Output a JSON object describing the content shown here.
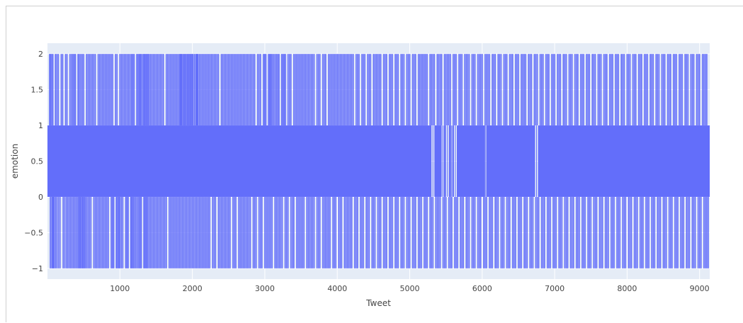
{
  "chart_data": {
    "type": "line",
    "title": "",
    "xlabel": "Tweet",
    "ylabel": "emotion",
    "xlim": [
      0,
      9140
    ],
    "ylim": [
      -1.15,
      2.15
    ],
    "x_ticks": [
      1000,
      2000,
      3000,
      4000,
      5000,
      6000,
      7000,
      8000,
      9000
    ],
    "x_tick_labels": [
      "1000",
      "2000",
      "3000",
      "4000",
      "5000",
      "6000",
      "7000",
      "8000",
      "9000"
    ],
    "y_ticks": [
      -1,
      -0.5,
      0,
      0.5,
      1,
      1.5,
      2
    ],
    "y_tick_labels": [
      "−1",
      "−0.5",
      "0",
      "0.5",
      "1",
      "1.5",
      "2"
    ],
    "grid": true,
    "colors": {
      "line": "#636efa",
      "plot_background": "#e5ecf6",
      "grid": "#ffffff"
    },
    "series": [
      {
        "x_range": [
          0,
          9140
        ],
        "value_set": [
          -1,
          0,
          1,
          2
        ],
        "primary_oscillation": [
          0,
          1
        ],
        "spikes_to_2_at": [
          30,
          40,
          110,
          330,
          350,
          440,
          460,
          560,
          580,
          600,
          620,
          700,
          720,
          780,
          820,
          840,
          860,
          1020,
          1040,
          1060,
          1120,
          1160,
          1250,
          1300,
          1320,
          1350,
          1400,
          1440,
          1500,
          1560,
          1640,
          1660,
          1720,
          1760,
          1820,
          1850,
          1900,
          1950,
          1980,
          2010,
          2050,
          2080,
          2100,
          2140,
          2180,
          2200,
          2260,
          2300,
          2320,
          2400,
          2440,
          2480,
          2520,
          2560,
          2620,
          2680,
          2740,
          2780,
          2820,
          2900,
          2980,
          3050,
          3100,
          3160,
          3250,
          3320,
          3400,
          3460,
          3520,
          3580,
          3640,
          3720,
          3800,
          3880,
          3940,
          4000,
          4060,
          4120,
          4180,
          4260,
          4340,
          4420,
          4500,
          4560,
          4640,
          4720,
          4800,
          4880,
          4960,
          5040,
          5140,
          5200,
          5300,
          5400,
          5520,
          5600,
          5680,
          5780,
          5860,
          5960,
          6060,
          6140,
          6220,
          6300,
          6380,
          6460,
          6560,
          6640,
          6720,
          6800,
          6880,
          6960,
          7040,
          7120,
          7200,
          7280,
          7360,
          7440,
          7520,
          7600,
          7680,
          7760,
          7840,
          7920,
          8000,
          8080,
          8160,
          8240,
          8320,
          8400,
          8480,
          8560,
          8640,
          8720,
          8800,
          8880,
          8960,
          9040,
          9100
        ],
        "spikes_to_neg1_at": [
          40,
          60,
          90,
          130,
          260,
          300,
          340,
          380,
          420,
          470,
          520,
          560,
          640,
          700,
          760,
          800,
          880,
          950,
          1000,
          1080,
          1150,
          1200,
          1260,
          1330,
          1380,
          1420,
          1480,
          1540,
          1600,
          1700,
          1760,
          1800,
          1860,
          1900,
          1960,
          2020,
          2080,
          2140,
          2200,
          2280,
          2360,
          2420,
          2480,
          2560,
          2640,
          2700,
          2760,
          2840,
          2920,
          3000,
          3060,
          3140,
          3200,
          3280,
          3360,
          3440,
          3500,
          3580,
          3640,
          3720,
          3800,
          3860,
          3940,
          4020,
          4100,
          4160,
          4240,
          4320,
          4400,
          4480,
          4560,
          4640,
          4720,
          4800,
          4880,
          4960,
          5040,
          5120,
          5200,
          5280,
          5380,
          5460,
          5540,
          5620,
          5700,
          5780,
          5860,
          5940,
          6020,
          6100,
          6180,
          6260,
          6340,
          6420,
          6500,
          6580,
          6660,
          6740,
          6820,
          6900,
          6980,
          7060,
          7140,
          7220,
          7300,
          7380,
          7460,
          7540,
          7620,
          7700,
          7780,
          7860,
          7940,
          8020,
          8100,
          8180,
          8260,
          8340,
          8420,
          8500,
          8580,
          8660,
          8740,
          8820,
          8900,
          8980,
          9060,
          9120
        ],
        "gaps_in_0_1_band": [
          [
            5300,
            5340
          ],
          [
            5440,
            5470
          ],
          [
            5500,
            5540
          ],
          [
            5570,
            5590
          ],
          [
            5610,
            5650
          ],
          [
            6040,
            6060
          ],
          [
            6730,
            6770
          ]
        ]
      }
    ]
  }
}
